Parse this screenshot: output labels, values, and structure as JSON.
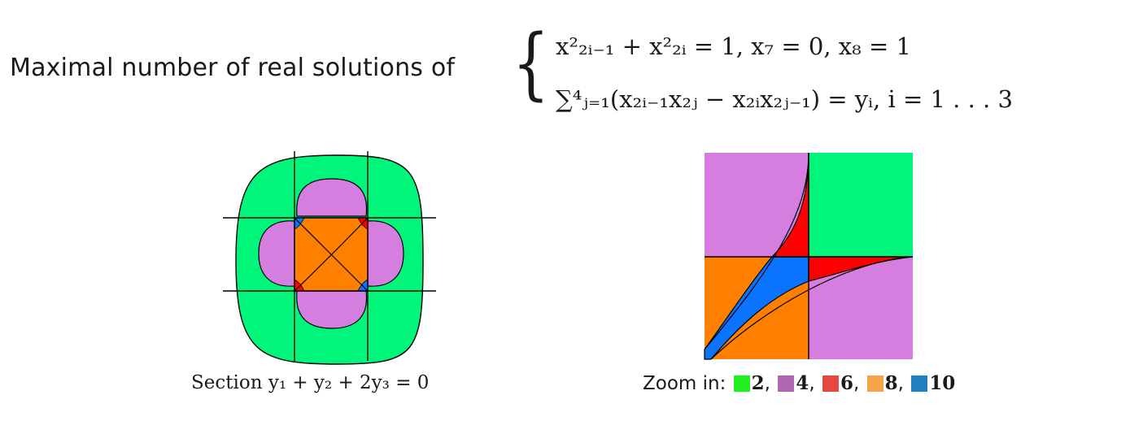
{
  "title": {
    "prefix": "Maximal number of real solutions of",
    "brace": "{"
  },
  "equations": {
    "line1": "x²₂ᵢ₋₁ + x²₂ᵢ = 1, x₇ = 0, x₈ = 1",
    "line2": "∑⁴ⱼ₌₁(x₂ᵢ₋₁x₂ⱼ − x₂ᵢx₂ⱼ₋₁) = yᵢ, i = 1 . . . 3"
  },
  "left_figure": {
    "caption": "Section y₁ + y₂ + 2y₃ = 0"
  },
  "right_figure": {
    "caption_prefix": "Zoom in:",
    "legend": [
      {
        "label": "2",
        "color": "#22ee22"
      },
      {
        "label": "4",
        "color": "#b065b0"
      },
      {
        "label": "6",
        "color": "#e8473f"
      },
      {
        "label": "8",
        "color": "#f4a446"
      },
      {
        "label": "10",
        "color": "#1f7fbf"
      }
    ]
  },
  "region_colors": {
    "green": "#00f57a",
    "pink": "#d67ee0",
    "orange": "#ff8000",
    "red": "#ff0000",
    "blue": "#0a74ff"
  }
}
